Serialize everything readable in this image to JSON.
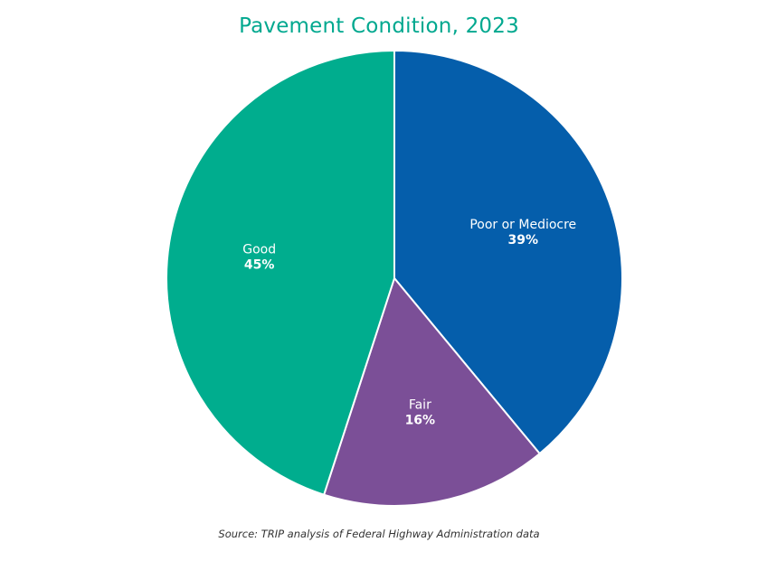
{
  "chart_data": {
    "type": "pie",
    "title": "Pavement Condition, 2023",
    "source": "Source: TRIP analysis of Federal Highway Administration data",
    "slices": [
      {
        "label": "Poor or Mediocre",
        "value": 39,
        "value_label": "39%",
        "color": "#055EAB"
      },
      {
        "label": "Fair",
        "value": 16,
        "value_label": "16%",
        "color": "#7B4F97"
      },
      {
        "label": "Good",
        "value": 45,
        "value_label": "45%",
        "color": "#00AD8E"
      }
    ],
    "start": "12 o'clock",
    "direction": "clockwise",
    "legend": "none"
  }
}
